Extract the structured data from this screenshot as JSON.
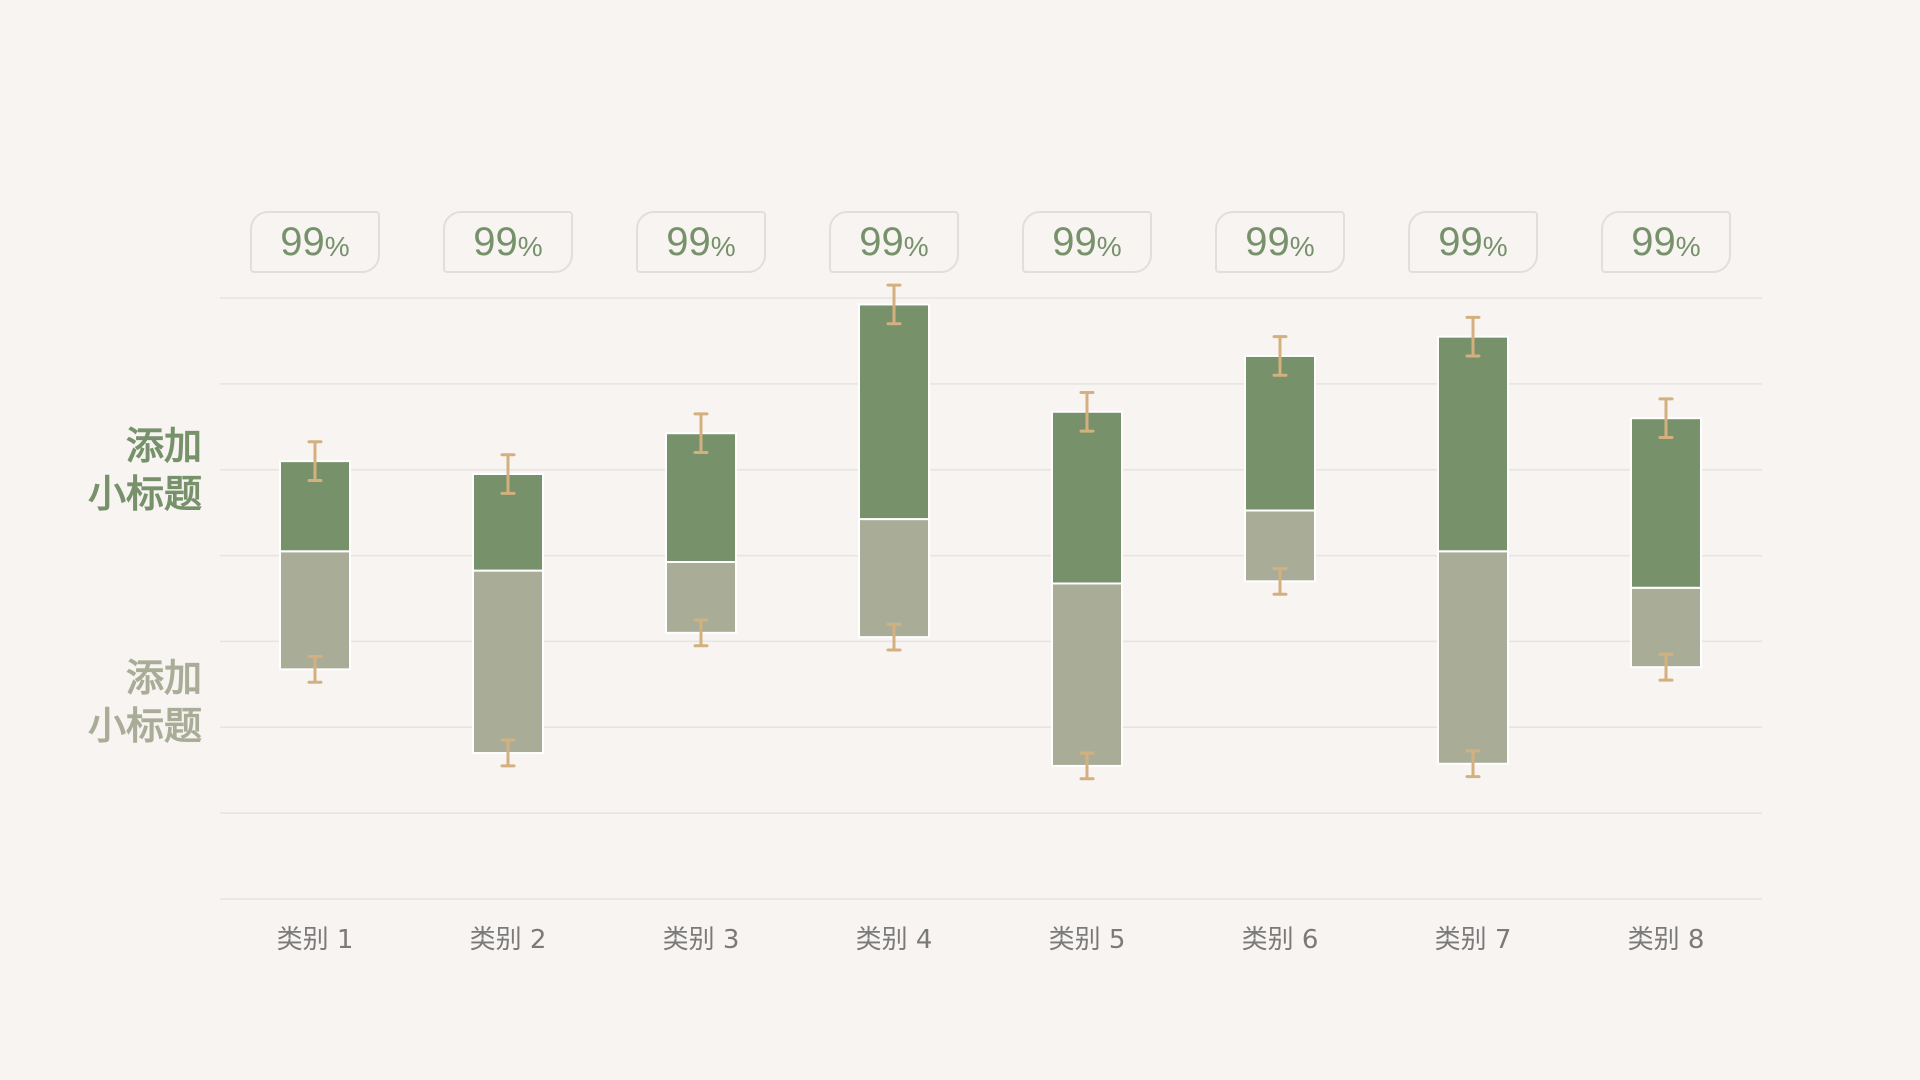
{
  "side_titles": {
    "upper": {
      "line1": "添加",
      "line2": "小标题"
    },
    "lower": {
      "line1": "添加",
      "line2": "小标题"
    }
  },
  "colors": {
    "background": "#f7f4f2",
    "upper_bar": "#77916b",
    "lower_bar": "#a9ad98",
    "error_bar": "#d4b07e",
    "grid": "#e6e3e1",
    "tick_label": "#7a7a7a",
    "badge_border": "#e1dfdd"
  },
  "chart_data": {
    "type": "bar",
    "stacked": true,
    "grid": true,
    "categories": [
      "类别 1",
      "类别 2",
      "类别 3",
      "类别 4",
      "类别 5",
      "类别 6",
      "类别 7",
      "类别 8"
    ],
    "series": [
      {
        "values": [
          0.55,
          0.85,
          0.33,
          0.55,
          0.85,
          0.33,
          0.99,
          0.37
        ]
      },
      {
        "values": [
          0.42,
          0.45,
          0.6,
          1.0,
          0.8,
          0.72,
          1.0,
          0.79
        ]
      }
    ],
    "baselines": [
      1.07,
      0.68,
      1.24,
      1.22,
      0.62,
      1.48,
      0.63,
      1.08
    ],
    "error_bars": {
      "upper_half_span": 0.09,
      "lower_half_span": 0.06
    },
    "ylim": [
      0,
      2.8
    ],
    "badges": [
      {
        "num": "99",
        "sign": "%"
      },
      {
        "num": "99",
        "sign": "%"
      },
      {
        "num": "99",
        "sign": "%"
      },
      {
        "num": "99",
        "sign": "%"
      },
      {
        "num": "99",
        "sign": "%"
      },
      {
        "num": "99",
        "sign": "%"
      },
      {
        "num": "99",
        "sign": "%"
      },
      {
        "num": "99",
        "sign": "%"
      }
    ]
  }
}
